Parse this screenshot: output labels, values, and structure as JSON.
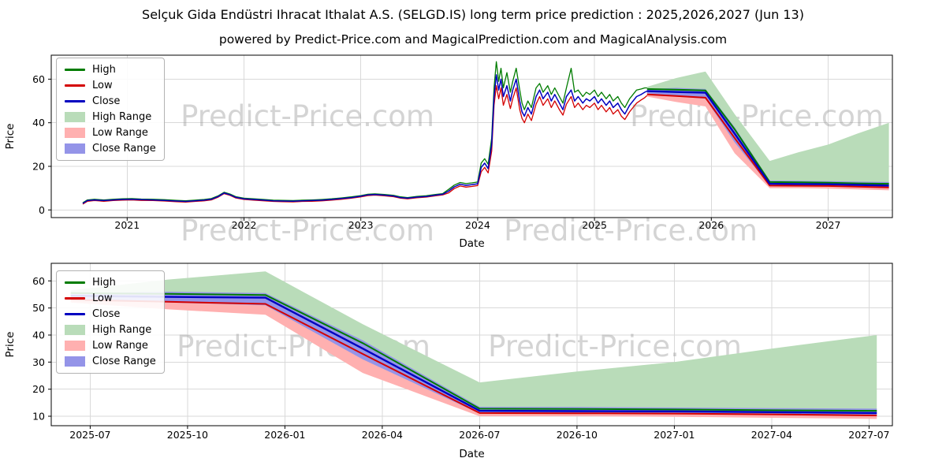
{
  "page": {
    "title": "Selçuk Gida Endüstri Ihracat Ithalat A.S. (SELGD.IS) long term price prediction : 2025,2026,2027 (Jun 13)",
    "subtitle": "powered by Predict-Price.com and MagicalPrediction.com and MagicalAnalysis.com"
  },
  "watermark": {
    "text": "Predict-Price.com",
    "color": "#999999"
  },
  "legend": {
    "items": [
      {
        "label": "High",
        "swatch": "line",
        "color": "#007c00"
      },
      {
        "label": "Low",
        "swatch": "line",
        "color": "#d40000"
      },
      {
        "label": "Close",
        "swatch": "line",
        "color": "#0000c0"
      },
      {
        "label": "High Range",
        "swatch": "band",
        "color": "#b9dcb9"
      },
      {
        "label": "Low Range",
        "swatch": "band",
        "color": "#ffb0b0"
      },
      {
        "label": "Close Range",
        "swatch": "band",
        "color": "#9494e8"
      }
    ]
  },
  "chart_data": {
    "type": "line",
    "colors": {
      "high": "#007c00",
      "low": "#d40000",
      "close": "#0000c0",
      "high_range": "#b9dcb9",
      "low_range": "#ffb0b0",
      "close_range": "#9494e8",
      "grid": "#d9d9d9",
      "axis": "#000000"
    },
    "charts": [
      {
        "id": "main",
        "show_history": true,
        "xlabel": "Date",
        "ylabel": "Price",
        "xlim": [
          2020.35,
          2027.55
        ],
        "ylim": [
          -3.5,
          71
        ],
        "yticks": [
          0,
          20,
          40,
          60
        ],
        "xticks": [
          {
            "v": 2021,
            "label": "2021"
          },
          {
            "v": 2022,
            "label": "2022"
          },
          {
            "v": 2023,
            "label": "2023"
          },
          {
            "v": 2024,
            "label": "2024"
          },
          {
            "v": 2025,
            "label": "2025"
          },
          {
            "v": 2026,
            "label": "2026"
          },
          {
            "v": 2027,
            "label": "2027"
          }
        ],
        "grid": true,
        "legend_position": "upper left"
      },
      {
        "id": "forecast",
        "show_history": false,
        "xlabel": "Date",
        "ylabel": "Price",
        "xlim": [
          2025.4,
          2027.56
        ],
        "ylim": [
          6.5,
          66.5
        ],
        "yticks": [
          10,
          20,
          30,
          40,
          50,
          60
        ],
        "xticks": [
          {
            "v": 2025.5,
            "label": "2025-07"
          },
          {
            "v": 2025.75,
            "label": "2025-10"
          },
          {
            "v": 2026.0,
            "label": "2026-01"
          },
          {
            "v": 2026.25,
            "label": "2026-04"
          },
          {
            "v": 2026.5,
            "label": "2026-07"
          },
          {
            "v": 2026.75,
            "label": "2026-10"
          },
          {
            "v": 2027.0,
            "label": "2027-01"
          },
          {
            "v": 2027.25,
            "label": "2027-04"
          },
          {
            "v": 2027.5,
            "label": "2027-07"
          }
        ],
        "grid": true,
        "legend_position": "upper left"
      }
    ],
    "history": {
      "x": [
        2020.62,
        2020.66,
        2020.72,
        2020.8,
        2020.88,
        2020.96,
        2021.04,
        2021.12,
        2021.22,
        2021.32,
        2021.42,
        2021.5,
        2021.58,
        2021.66,
        2021.72,
        2021.78,
        2021.83,
        2021.88,
        2021.93,
        2022.0,
        2022.08,
        2022.17,
        2022.25,
        2022.33,
        2022.42,
        2022.5,
        2022.58,
        2022.67,
        2022.75,
        2022.83,
        2022.92,
        2023.0,
        2023.06,
        2023.12,
        2023.2,
        2023.28,
        2023.34,
        2023.4,
        2023.48,
        2023.56,
        2023.64,
        2023.7,
        2023.75,
        2023.8,
        2023.85,
        2023.9,
        2023.95,
        2024.0,
        2024.03,
        2024.06,
        2024.09,
        2024.12,
        2024.14,
        2024.16,
        2024.18,
        2024.2,
        2024.22,
        2024.25,
        2024.28,
        2024.3,
        2024.33,
        2024.36,
        2024.38,
        2024.4,
        2024.43,
        2024.46,
        2024.5,
        2024.53,
        2024.56,
        2024.6,
        2024.63,
        2024.66,
        2024.7,
        2024.73,
        2024.76,
        2024.8,
        2024.83,
        2024.86,
        2024.9,
        2024.93,
        2024.96,
        2025.0,
        2025.03,
        2025.06,
        2025.1,
        2025.13,
        2025.16,
        2025.2,
        2025.23,
        2025.26,
        2025.3,
        2025.33,
        2025.36,
        2025.4,
        2025.43,
        2025.45
      ],
      "high": [
        3.3,
        4.6,
        4.9,
        4.6,
        4.9,
        5.1,
        5.2,
        5.0,
        4.9,
        4.7,
        4.4,
        4.2,
        4.5,
        4.8,
        5.2,
        6.5,
        8.1,
        7.3,
        6.1,
        5.4,
        5.1,
        4.8,
        4.5,
        4.4,
        4.3,
        4.5,
        4.6,
        4.8,
        5.1,
        5.5,
        6.0,
        6.6,
        7.2,
        7.4,
        7.1,
        6.7,
        6.0,
        5.7,
        6.2,
        6.5,
        7.1,
        7.5,
        9.4,
        11.4,
        12.6,
        12.1,
        12.4,
        12.8,
        21.5,
        23.5,
        21.0,
        33.0,
        56.0,
        68.0,
        59.0,
        65.0,
        56.0,
        63.0,
        54.0,
        59.0,
        65.0,
        55.0,
        49.0,
        46.0,
        50.0,
        47.0,
        56.0,
        58.0,
        54.0,
        57.0,
        53.0,
        56.0,
        52.0,
        49.0,
        56.0,
        65.0,
        54.0,
        55.0,
        52.0,
        54.0,
        53.0,
        55.0,
        52.0,
        54.0,
        51.0,
        53.0,
        50.0,
        52.0,
        49.0,
        47.0,
        51.0,
        53.0,
        55.0,
        55.5,
        56.0,
        56.0
      ],
      "low": [
        2.7,
        4.0,
        4.3,
        4.0,
        4.3,
        4.5,
        4.6,
        4.4,
        4.3,
        4.1,
        3.8,
        3.6,
        3.9,
        4.2,
        4.6,
        5.9,
        7.5,
        6.7,
        5.5,
        4.8,
        4.5,
        4.2,
        3.9,
        3.8,
        3.7,
        3.9,
        4.0,
        4.2,
        4.5,
        4.9,
        5.4,
        6.0,
        6.6,
        6.8,
        6.5,
        6.1,
        5.4,
        5.1,
        5.6,
        5.9,
        6.5,
        6.9,
        7.8,
        9.8,
        11.0,
        10.5,
        10.8,
        11.2,
        17.5,
        19.5,
        17.0,
        27.0,
        48.0,
        57.0,
        51.0,
        56.0,
        48.0,
        53.0,
        46.5,
        51.0,
        56.0,
        46.0,
        42.0,
        40.0,
        44.0,
        41.0,
        48.5,
        52.0,
        48.0,
        51.0,
        47.0,
        50.0,
        46.0,
        43.5,
        48.5,
        52.0,
        47.0,
        49.0,
        46.0,
        48.0,
        47.0,
        49.0,
        46.0,
        48.0,
        45.0,
        47.0,
        44.0,
        46.0,
        43.0,
        41.5,
        45.0,
        47.0,
        49.0,
        50.5,
        51.5,
        52.5
      ],
      "close": [
        3.0,
        4.3,
        4.6,
        4.3,
        4.6,
        4.8,
        4.9,
        4.7,
        4.6,
        4.4,
        4.1,
        3.9,
        4.2,
        4.5,
        4.9,
        6.2,
        7.8,
        7.0,
        5.8,
        5.1,
        4.8,
        4.5,
        4.2,
        4.1,
        4.0,
        4.2,
        4.3,
        4.5,
        4.8,
        5.2,
        5.7,
        6.3,
        6.9,
        7.1,
        6.8,
        6.4,
        5.7,
        5.4,
        5.9,
        6.2,
        6.8,
        7.2,
        8.6,
        10.6,
        11.8,
        11.3,
        11.6,
        12.0,
        19.5,
        21.5,
        19.0,
        30.0,
        52.0,
        62.0,
        55.0,
        60.0,
        52.0,
        57.0,
        50.0,
        55.0,
        60.0,
        50.0,
        45.0,
        43.0,
        47.0,
        44.0,
        52.0,
        55.0,
        51.0,
        54.0,
        50.0,
        53.0,
        49.0,
        46.0,
        52.0,
        55.0,
        50.0,
        52.0,
        49.0,
        51.0,
        50.0,
        52.0,
        49.0,
        51.0,
        48.0,
        50.0,
        47.0,
        49.0,
        46.0,
        44.0,
        48.0,
        50.0,
        52.0,
        53.0,
        54.0,
        54.5
      ]
    },
    "prediction": {
      "x": [
        2025.45,
        2025.7,
        2025.95,
        2026.2,
        2026.5,
        2026.75,
        2027.0,
        2027.25,
        2027.52
      ],
      "high_line": [
        55.5,
        55.2,
        54.8,
        37.0,
        12.8,
        12.7,
        12.5,
        12.2,
        12.0
      ],
      "low_line": [
        53.0,
        52.3,
        51.5,
        33.0,
        11.2,
        11.1,
        11.0,
        10.7,
        10.3
      ],
      "close_line": [
        54.5,
        54.1,
        53.8,
        35.0,
        12.0,
        11.9,
        11.8,
        11.5,
        11.2
      ],
      "high_range_top": [
        56.5,
        60.5,
        63.5,
        44.0,
        22.5,
        26.5,
        30.0,
        35.0,
        40.0
      ],
      "high_range_bottom": [
        53.5,
        51.0,
        48.0,
        28.0,
        11.5,
        11.4,
        11.4,
        11.5,
        11.8
      ],
      "low_range_top": [
        55.0,
        54.0,
        53.0,
        35.0,
        13.0,
        12.9,
        12.8,
        12.5,
        12.2
      ],
      "low_range_bottom": [
        52.0,
        49.5,
        47.5,
        26.0,
        10.0,
        10.0,
        9.8,
        9.4,
        9.0
      ],
      "close_range_top": [
        55.5,
        56.0,
        55.5,
        38.0,
        13.5,
        13.4,
        13.2,
        13.0,
        12.8
      ],
      "close_range_bottom": [
        53.5,
        52.0,
        51.0,
        31.0,
        11.0,
        11.0,
        10.8,
        10.6,
        10.4
      ]
    }
  }
}
